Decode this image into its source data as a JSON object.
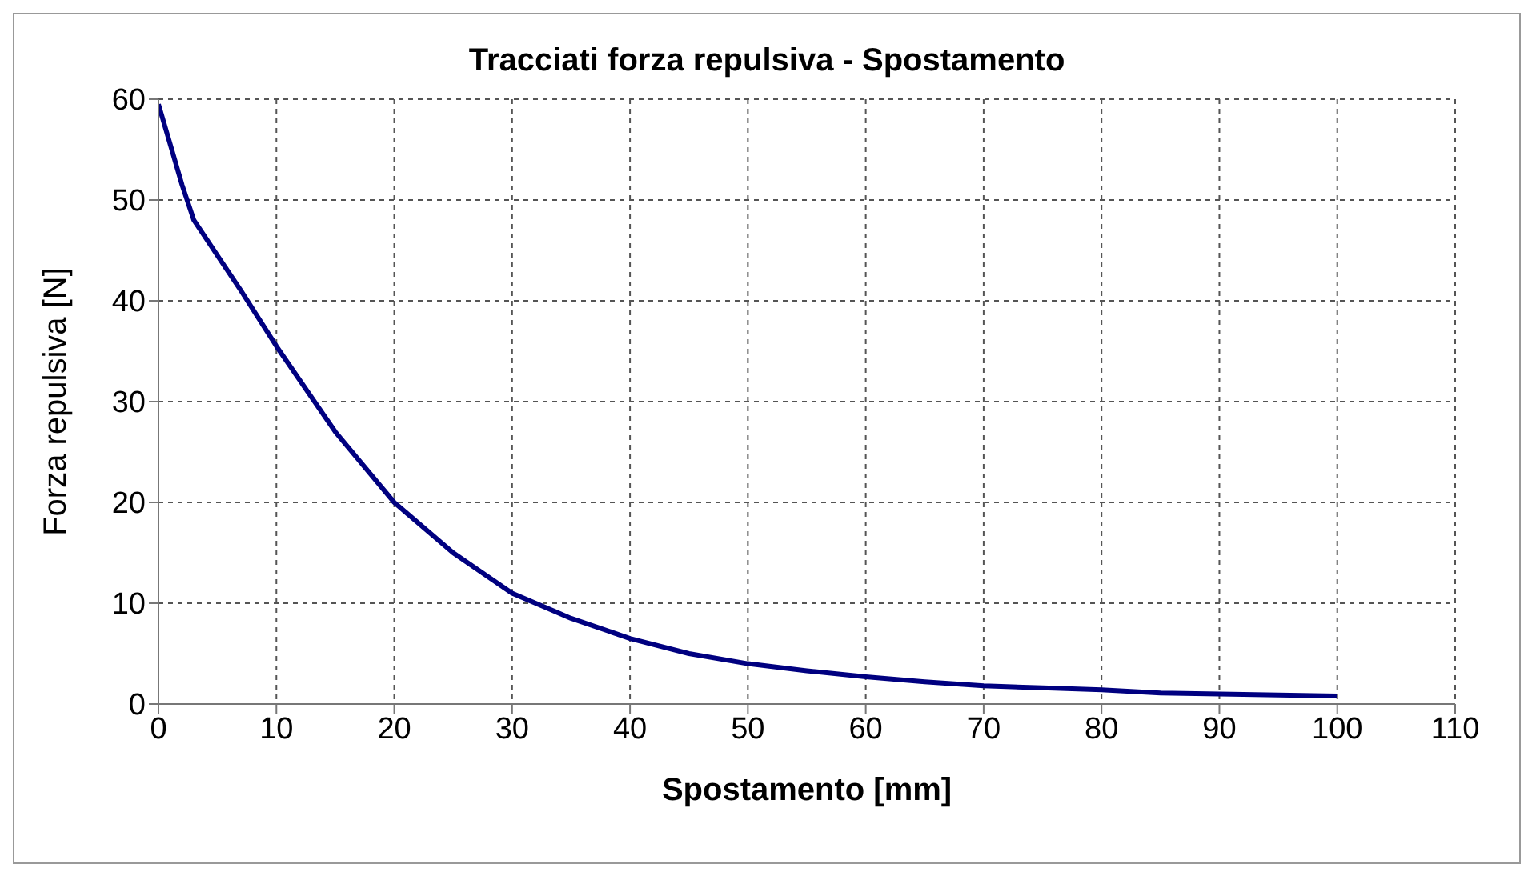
{
  "chart_data": {
    "type": "line",
    "title": "Tracciati forza repulsiva - Spostamento",
    "xlabel": "Spostamento [mm]",
    "ylabel": "Forza repulsiva [N]",
    "x": [
      0,
      1,
      2,
      3,
      5,
      7,
      10,
      15,
      20,
      25,
      30,
      35,
      40,
      45,
      50,
      55,
      60,
      65,
      70,
      75,
      80,
      85,
      90,
      95,
      100
    ],
    "series": [
      {
        "color": "#000080",
        "values": [
          59.5,
          55.5,
          51.5,
          48,
          44.5,
          41,
          35.5,
          27,
          20,
          15,
          11,
          8.5,
          6.5,
          5,
          4,
          3.3,
          2.7,
          2.2,
          1.8,
          1.6,
          1.4,
          1.1,
          1,
          0.9,
          0.8
        ]
      }
    ],
    "xlim": [
      0,
      110
    ],
    "xticks": [
      0,
      10,
      20,
      30,
      40,
      50,
      60,
      70,
      80,
      90,
      100,
      110
    ],
    "ylim": [
      0,
      60
    ],
    "yticks": [
      0,
      10,
      20,
      30,
      40,
      50,
      60
    ],
    "grid": true,
    "marker": "none",
    "line_style": "solid",
    "legend": false
  }
}
